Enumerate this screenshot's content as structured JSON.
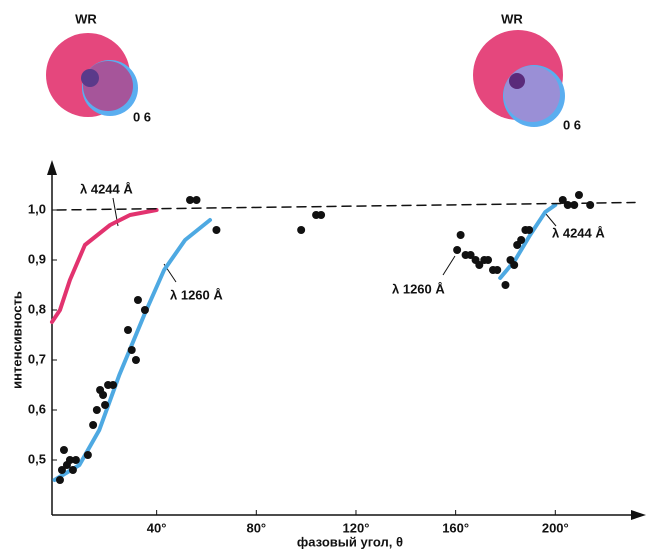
{
  "insets": [
    {
      "title": "WR",
      "label": "0 6"
    },
    {
      "title": "WR",
      "label": "0 6"
    }
  ],
  "chart_data": {
    "type": "scatter",
    "y_label": "интенсивность",
    "x_label": "фазовый угол, θ",
    "xlim": [
      -2,
      236
    ],
    "ylim": [
      0.39,
      1.09
    ],
    "xticks": [
      {
        "value": 40,
        "label": "40°"
      },
      {
        "value": 80,
        "label": "80°"
      },
      {
        "value": 120,
        "label": "120°"
      },
      {
        "value": 160,
        "label": "160°"
      },
      {
        "value": 200,
        "label": "200°"
      }
    ],
    "yticks": [
      {
        "value": 0.5,
        "label": "0,5"
      },
      {
        "value": 0.6,
        "label": "0,6"
      },
      {
        "value": 0.7,
        "label": "0,7"
      },
      {
        "value": 0.8,
        "label": "0,8"
      },
      {
        "value": 0.9,
        "label": "0,9"
      },
      {
        "value": 1.0,
        "label": "1,0"
      }
    ],
    "series": [
      {
        "mode": "line",
        "color": "#e2336f",
        "x": [
          -2,
          1.2,
          5.2,
          11.2,
          21.3,
          29.3,
          40
        ],
        "values": [
          0.776,
          0.8,
          0.86,
          0.93,
          0.97,
          0.99,
          1.0
        ]
      },
      {
        "mode": "line",
        "color": "#4ea9e2",
        "x": [
          -1,
          9,
          17,
          25,
          35,
          43,
          51.4,
          61.4,
          null,
          177.9,
          183.9,
          189.9,
          196,
          200
        ],
        "values": [
          0.46,
          0.49,
          0.56,
          0.67,
          0.79,
          0.88,
          0.94,
          0.98,
          null,
          0.864,
          0.9,
          0.95,
          0.996,
          1.01
        ]
      },
      {
        "mode": "line",
        "dash": true,
        "color": "#111111",
        "x": [
          0,
          232
        ],
        "values": [
          1.0,
          1.015
        ]
      },
      {
        "mode": "markers",
        "color": "#111111",
        "x": [
          1.2,
          2,
          2.8,
          4,
          5.2,
          6.4,
          7.6,
          12.4,
          14.5,
          16,
          17.3,
          18.5,
          19.3,
          20.5,
          22.5,
          28.5,
          30,
          31.7,
          32.5,
          35.3,
          53.4,
          56,
          64,
          98,
          104,
          106,
          160.6,
          162,
          164,
          166,
          168,
          169.5,
          171.5,
          173,
          175,
          176.7,
          180,
          182,
          183.5,
          184.7,
          186.3,
          188,
          189.5,
          203,
          205,
          207.6,
          209.5,
          214
        ],
        "values": [
          0.46,
          0.48,
          0.52,
          0.49,
          0.5,
          0.48,
          0.5,
          0.51,
          0.57,
          0.6,
          0.64,
          0.63,
          0.61,
          0.65,
          0.65,
          0.76,
          0.72,
          0.7,
          0.82,
          0.8,
          1.02,
          1.02,
          0.96,
          0.96,
          0.99,
          0.99,
          0.92,
          0.95,
          0.91,
          0.91,
          0.9,
          0.89,
          0.9,
          0.9,
          0.88,
          0.88,
          0.85,
          0.9,
          0.89,
          0.93,
          0.94,
          0.96,
          0.96,
          1.02,
          1.01,
          1.01,
          1.03,
          1.01
        ]
      }
    ],
    "annotations": [
      "λ 4244 Å",
      "λ 1260 Å",
      "λ 1260 Å",
      "λ 4244 Å"
    ]
  }
}
